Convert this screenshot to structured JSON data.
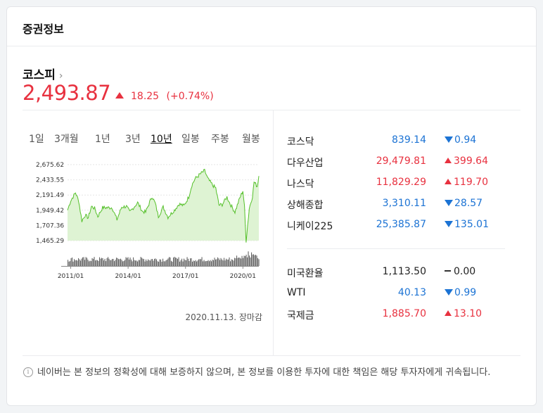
{
  "card": {
    "title": "증권정보"
  },
  "index": {
    "name": "코스피",
    "chevron": "›",
    "value": "2,493.87",
    "change": "18.25",
    "change_pct": "(+0.74%)",
    "color": "#e8313f"
  },
  "tabs": [
    {
      "label": "1일",
      "active": false
    },
    {
      "label": "3개월",
      "active": false
    },
    {
      "label": "1년",
      "active": false
    },
    {
      "label": "3년",
      "active": false
    },
    {
      "label": "10년",
      "active": true
    },
    {
      "label": "일봉",
      "active": false
    },
    {
      "label": "주봉",
      "active": false
    },
    {
      "label": "월봉",
      "active": false
    }
  ],
  "chart_data": {
    "type": "area",
    "title": "",
    "xlabel": "",
    "ylabel": "",
    "y_ticks": [
      "2,675.62",
      "2,433.55",
      "2,191.49",
      "1,949.42",
      "1,707.36",
      "1,465.29"
    ],
    "x_ticks": [
      "2011/01",
      "2014/01",
      "2017/01",
      "2020/01"
    ],
    "ylim": [
      1465.29,
      2675.62
    ],
    "xlim": [
      "2010-11",
      "2020-11"
    ],
    "line_color": "#55c02a",
    "fill_color": "#def3d3",
    "series": [
      {
        "values": [
          [
            "2010-11",
            1950
          ],
          [
            "2011-01",
            2100
          ],
          [
            "2011-04",
            2230
          ],
          [
            "2011-06",
            2100
          ],
          [
            "2011-08",
            1780
          ],
          [
            "2011-10",
            1870
          ],
          [
            "2011-12",
            1830
          ],
          [
            "2012-02",
            2010
          ],
          [
            "2012-04",
            1980
          ],
          [
            "2012-06",
            1850
          ],
          [
            "2012-09",
            1990
          ],
          [
            "2012-12",
            1990
          ],
          [
            "2013-03",
            1990
          ],
          [
            "2013-06",
            1800
          ],
          [
            "2013-09",
            2000
          ],
          [
            "2013-12",
            2010
          ],
          [
            "2014-02",
            1920
          ],
          [
            "2014-07",
            2070
          ],
          [
            "2014-10",
            1930
          ],
          [
            "2014-12",
            1920
          ],
          [
            "2015-04",
            2170
          ],
          [
            "2015-06",
            2060
          ],
          [
            "2015-08",
            1850
          ],
          [
            "2015-11",
            2000
          ],
          [
            "2016-02",
            1840
          ],
          [
            "2016-06",
            1950
          ],
          [
            "2016-09",
            2050
          ],
          [
            "2016-12",
            2020
          ],
          [
            "2017-03",
            2160
          ],
          [
            "2017-05",
            2350
          ],
          [
            "2017-07",
            2450
          ],
          [
            "2017-10",
            2520
          ],
          [
            "2018-01",
            2580
          ],
          [
            "2018-03",
            2450
          ],
          [
            "2018-06",
            2350
          ],
          [
            "2018-08",
            2300
          ],
          [
            "2018-10",
            2030
          ],
          [
            "2018-12",
            2040
          ],
          [
            "2019-03",
            2160
          ],
          [
            "2019-05",
            2050
          ],
          [
            "2019-08",
            1920
          ],
          [
            "2019-11",
            2140
          ],
          [
            "2020-01",
            2260
          ],
          [
            "2020-02",
            2000
          ],
          [
            "2020-03",
            1460
          ],
          [
            "2020-05",
            1980
          ],
          [
            "2020-07",
            2170
          ],
          [
            "2020-08",
            2400
          ],
          [
            "2020-10",
            2330
          ],
          [
            "2020-11",
            2493.87
          ]
        ]
      }
    ],
    "volume_color": "#666666"
  },
  "date_note": "2020.11.13. 장마감",
  "markets_top": [
    {
      "name": "코스닥",
      "value": "839.14",
      "change": "0.94",
      "direction": "down"
    },
    {
      "name": "다우산업",
      "value": "29,479.81",
      "change": "399.64",
      "direction": "up"
    },
    {
      "name": "나스닥",
      "value": "11,829.29",
      "change": "119.70",
      "direction": "up"
    },
    {
      "name": "상해종합",
      "value": "3,310.11",
      "change": "28.57",
      "direction": "down"
    },
    {
      "name": "니케이225",
      "value": "25,385.87",
      "change": "135.01",
      "direction": "down"
    }
  ],
  "markets_bottom": [
    {
      "name": "미국환율",
      "value": "1,113.50",
      "change": "0.00",
      "direction": "flat"
    },
    {
      "name": "WTI",
      "value": "40.13",
      "change": "0.99",
      "direction": "down"
    },
    {
      "name": "국제금",
      "value": "1,885.70",
      "change": "13.10",
      "direction": "up"
    }
  ],
  "disclaimer": {
    "icon": "info-icon",
    "text": "네이버는 본 정보의 정확성에 대해 보증하지 않으며, 본 정보를 이용한 투자에 대한 책임은 해당 투자자에게 귀속됩니다."
  },
  "colors": {
    "up": "#e8313f",
    "down": "#1c73d4",
    "flat": "#222222"
  }
}
